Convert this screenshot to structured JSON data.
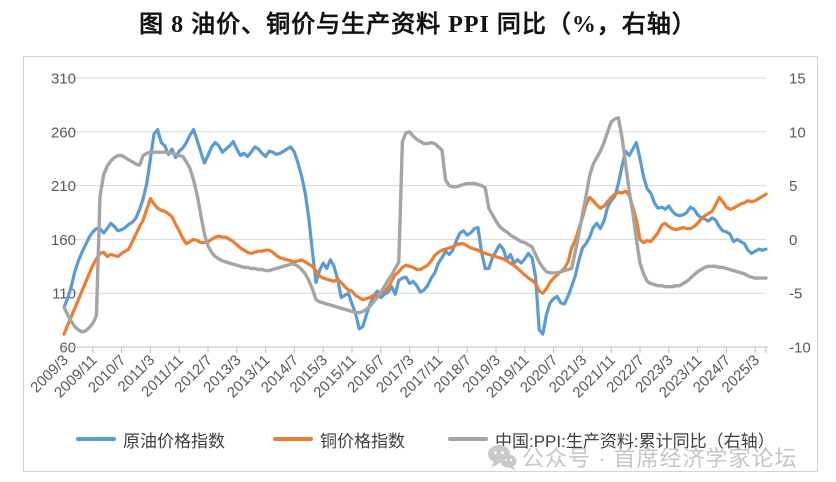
{
  "title": "图 8 油价、铜价与生产资料 PPI 同比（%，右轴）",
  "watermark": {
    "icon": "wechat-icon",
    "text": "公众号 · 首席经济学家论坛"
  },
  "chart_data": {
    "type": "line",
    "title": "图 8 油价、铜价与生产资料 PPI 同比（%，右轴）",
    "x_frequency": "monthly",
    "x_start": "2009/3",
    "x_end": "2025/6",
    "x_tick_labels": [
      "2009/3",
      "2009/11",
      "2010/7",
      "2011/3",
      "2011/11",
      "2012/7",
      "2013/3",
      "2013/11",
      "2014/7",
      "2015/3",
      "2015/11",
      "2016/7",
      "2017/3",
      "2017/11",
      "2018/7",
      "2019/3",
      "2019/11",
      "2020/7",
      "2021/3",
      "2021/11",
      "2022/7",
      "2023/3",
      "2023/11",
      "2024/7",
      "2025/3"
    ],
    "left_axis": {
      "range": [
        60,
        310
      ],
      "ticks": [
        60,
        110,
        160,
        210,
        260,
        310
      ]
    },
    "right_axis": {
      "range": [
        -10,
        15
      ],
      "ticks": [
        -10,
        -5,
        0,
        5,
        10,
        15
      ]
    },
    "grid": true,
    "legend_position": "bottom",
    "colors": {
      "oil": "#5B9BD5",
      "copper": "#ED7D31",
      "ppi": "#A5A5A5"
    },
    "series": [
      {
        "name": "原油价格指数",
        "color": "#5B9BD5",
        "axis": "left",
        "width": 3.2,
        "values_by_year": [
          {
            "year": 2009,
            "start_month": 3,
            "values": [
              97,
              105,
              116,
              130,
              140,
              148,
              155,
              162,
              167,
              170
            ]
          },
          {
            "year": 2010,
            "values": [
              170,
              166,
              170,
              175,
              172,
              168,
              169,
              171,
              174,
              176,
              180,
              188
            ]
          },
          {
            "year": 2011,
            "values": [
              198,
              212,
              235,
              258,
              262,
              250,
              247,
              239,
              244,
              236,
              242,
              245
            ]
          },
          {
            "year": 2012,
            "values": [
              250,
              257,
              262,
              252,
              241,
              231,
              238,
              246,
              250,
              247,
              241,
              244
            ]
          },
          {
            "year": 2013,
            "values": [
              247,
              251,
              244,
              238,
              240,
              237,
              241,
              246,
              244,
              240,
              237,
              242
            ]
          },
          {
            "year": 2014,
            "values": [
              241,
              239,
              240,
              242,
              244,
              246,
              241,
              231,
              219,
              203,
              180,
              149
            ]
          },
          {
            "year": 2015,
            "values": [
              120,
              131,
              138,
              133,
              141,
              135,
              123,
              106,
              108,
              110,
              100,
              91
            ]
          },
          {
            "year": 2016,
            "values": [
              77,
              79,
              90,
              100,
              107,
              112,
              106,
              109,
              111,
              116,
              109,
              122
            ]
          },
          {
            "year": 2017,
            "values": [
              124,
              125,
              119,
              121,
              117,
              111,
              113,
              117,
              124,
              129,
              138,
              143
            ]
          },
          {
            "year": 2018,
            "values": [
              149,
              146,
              150,
              159,
              166,
              168,
              164,
              166,
              170,
              171,
              148,
              133
            ]
          },
          {
            "year": 2019,
            "values": [
              133,
              143,
              149,
              155,
              151,
              141,
              146,
              138,
              141,
              138,
              142,
              147
            ]
          },
          {
            "year": 2020,
            "values": [
              143,
              125,
              76,
              72,
              90,
              101,
              105,
              107,
              101,
              100,
              107,
              116
            ]
          },
          {
            "year": 2021,
            "values": [
              126,
              140,
              152,
              156,
              162,
              171,
              175,
              170,
              177,
              190,
              196,
              200
            ]
          },
          {
            "year": 2022,
            "values": [
              212,
              228,
              242,
              238,
              244,
              250,
              235,
              218,
              207,
              203,
              194,
              189
            ]
          },
          {
            "year": 2023,
            "values": [
              190,
              188,
              191,
              186,
              183,
              182,
              183,
              185,
              190,
              188,
              183,
              180
            ]
          },
          {
            "year": 2024,
            "values": [
              179,
              177,
              180,
              178,
              172,
              168,
              167,
              165,
              158,
              160,
              158,
              156
            ]
          },
          {
            "year": 2025,
            "end_month": 6,
            "values": [
              150,
              147,
              149,
              151,
              150,
              151
            ]
          }
        ]
      },
      {
        "name": "铜价格指数",
        "color": "#ED7D31",
        "axis": "left",
        "width": 3.2,
        "values_by_year": [
          {
            "year": 2009,
            "start_month": 3,
            "values": [
              72,
              80,
              88,
              96,
              104,
              112,
              120,
              128,
              136,
              142
            ]
          },
          {
            "year": 2010,
            "values": [
              147,
              148,
              144,
              146,
              145,
              144,
              147,
              149,
              151,
              158,
              165,
              172
            ]
          },
          {
            "year": 2011,
            "values": [
              178,
              188,
              198,
              193,
              189,
              187,
              186,
              184,
              181,
              174,
              168,
              161
            ]
          },
          {
            "year": 2012,
            "values": [
              156,
              158,
              160,
              159,
              157,
              157,
              158,
              160,
              162,
              163,
              162,
              162
            ]
          },
          {
            "year": 2013,
            "values": [
              160,
              158,
              155,
              152,
              150,
              148,
              147,
              148,
              149,
              149,
              150,
              150
            ]
          },
          {
            "year": 2014,
            "values": [
              148,
              145,
              143,
              142,
              141,
              140,
              139,
              140,
              141,
              139,
              137,
              135
            ]
          },
          {
            "year": 2015,
            "values": [
              131,
              126,
              124,
              123,
              122,
              121,
              123,
              120,
              116,
              113,
              112,
              108
            ]
          },
          {
            "year": 2016,
            "values": [
              106,
              104,
              105,
              106,
              108,
              108,
              110,
              112,
              115,
              121,
              127,
              130
            ]
          },
          {
            "year": 2017,
            "values": [
              134,
              136,
              135,
              134,
              132,
              132,
              134,
              136,
              140,
              145,
              148,
              150
            ]
          },
          {
            "year": 2018,
            "values": [
              151,
              152,
              153,
              155,
              156,
              156,
              154,
              152,
              151,
              150,
              148,
              147
            ]
          },
          {
            "year": 2019,
            "values": [
              146,
              145,
              144,
              143,
              142,
              140,
              138,
              136,
              133,
              130,
              127,
              124
            ]
          },
          {
            "year": 2020,
            "values": [
              122,
              119,
              112,
              110,
              114,
              120,
              124,
              127,
              130,
              133,
              139,
              152
            ]
          },
          {
            "year": 2021,
            "values": [
              159,
              170,
              180,
              192,
              199,
              196,
              192,
              189,
              191,
              195,
              199,
              202
            ]
          },
          {
            "year": 2022,
            "values": [
              204,
              203,
              205,
              201,
              190,
              178,
              160,
              157,
              159,
              158,
              162,
              166
            ]
          },
          {
            "year": 2023,
            "values": [
              173,
              175,
              172,
              170,
              169,
              170,
              171,
              170,
              170,
              172,
              175,
              179
            ]
          },
          {
            "year": 2024,
            "values": [
              182,
              184,
              186,
              192,
              199,
              195,
              190,
              188,
              189,
              191,
              193,
              194
            ]
          },
          {
            "year": 2025,
            "end_month": 6,
            "values": [
              196,
              195,
              196,
              198,
              200,
              202
            ]
          }
        ]
      },
      {
        "name": "中国:PPI:生产资料:累计同比（右轴）",
        "color": "#A5A5A5",
        "axis": "right",
        "width": 3.4,
        "values_by_year": [
          {
            "year": 2009,
            "start_month": 3,
            "values": [
              -6.3,
              -7.0,
              -7.6,
              -8.1,
              -8.4,
              -8.6,
              -8.5,
              -8.2,
              -7.8,
              -7.1
            ]
          },
          {
            "year": 2010,
            "values": [
              4.0,
              6.0,
              6.8,
              7.3,
              7.6,
              7.8,
              7.8,
              7.6,
              7.4,
              7.2,
              7.0,
              6.9
            ]
          },
          {
            "year": 2011,
            "values": [
              7.8,
              8.0,
              8.1,
              8.1,
              8.1,
              8.1,
              8.1,
              8.1,
              8.0,
              7.9,
              7.8,
              7.7
            ]
          },
          {
            "year": 2012,
            "values": [
              7.2,
              6.6,
              5.5,
              4.1,
              2.3,
              0.5,
              -0.6,
              -1.2,
              -1.6,
              -1.8,
              -2.0,
              -2.1
            ]
          },
          {
            "year": 2013,
            "values": [
              -2.2,
              -2.3,
              -2.4,
              -2.5,
              -2.6,
              -2.6,
              -2.7,
              -2.7,
              -2.8,
              -2.8,
              -2.9,
              -2.9
            ]
          },
          {
            "year": 2014,
            "values": [
              -2.8,
              -2.7,
              -2.6,
              -2.5,
              -2.4,
              -2.3,
              -2.3,
              -2.5,
              -2.8,
              -3.2,
              -3.8,
              -4.6
            ]
          },
          {
            "year": 2015,
            "values": [
              -5.6,
              -5.8,
              -5.9,
              -6.0,
              -6.1,
              -6.2,
              -6.3,
              -6.4,
              -6.5,
              -6.6,
              -6.7,
              -6.8
            ]
          },
          {
            "year": 2016,
            "values": [
              -6.8,
              -6.7,
              -6.5,
              -6.2,
              -5.8,
              -5.4,
              -4.9,
              -4.4,
              -3.8,
              -3.3,
              -2.7,
              -2.1
            ]
          },
          {
            "year": 2017,
            "values": [
              9.1,
              9.9,
              10.0,
              9.6,
              9.3,
              9.1,
              8.9,
              8.9,
              9.0,
              8.9,
              8.6,
              8.3
            ]
          },
          {
            "year": 2018,
            "values": [
              5.5,
              5.0,
              4.9,
              4.9,
              5.0,
              5.1,
              5.2,
              5.2,
              5.2,
              5.1,
              5.0,
              4.8
            ]
          },
          {
            "year": 2019,
            "values": [
              2.9,
              2.3,
              1.7,
              1.2,
              0.9,
              0.7,
              0.4,
              0.2,
              0.0,
              -0.2,
              -0.3,
              -0.5
            ]
          },
          {
            "year": 2020,
            "values": [
              -0.7,
              -1.4,
              -2.1,
              -2.6,
              -3.0,
              -3.1,
              -3.1,
              -3.1,
              -3.0,
              -2.9,
              -2.8,
              -2.7
            ]
          },
          {
            "year": 2021,
            "values": [
              -1.2,
              0.5,
              2.3,
              4.0,
              5.9,
              7.0,
              7.6,
              8.2,
              9.0,
              10.0,
              10.9,
              11.2
            ]
          },
          {
            "year": 2022,
            "values": [
              11.3,
              9.5,
              7.0,
              4.5,
              2.5,
              0.0,
              -2.2,
              -3.2,
              -3.9,
              -4.1,
              -4.2,
              -4.3
            ]
          },
          {
            "year": 2023,
            "values": [
              -4.3,
              -4.4,
              -4.4,
              -4.4,
              -4.3,
              -4.3,
              -4.1,
              -3.9,
              -3.6,
              -3.3,
              -3.0,
              -2.8
            ]
          },
          {
            "year": 2024,
            "values": [
              -2.6,
              -2.5,
              -2.5,
              -2.5,
              -2.6,
              -2.6,
              -2.7,
              -2.8,
              -2.9,
              -3.0,
              -3.1,
              -3.2
            ]
          },
          {
            "year": 2025,
            "end_month": 6,
            "values": [
              -3.4,
              -3.5,
              -3.6,
              -3.6,
              -3.6,
              -3.6
            ]
          }
        ]
      }
    ]
  }
}
